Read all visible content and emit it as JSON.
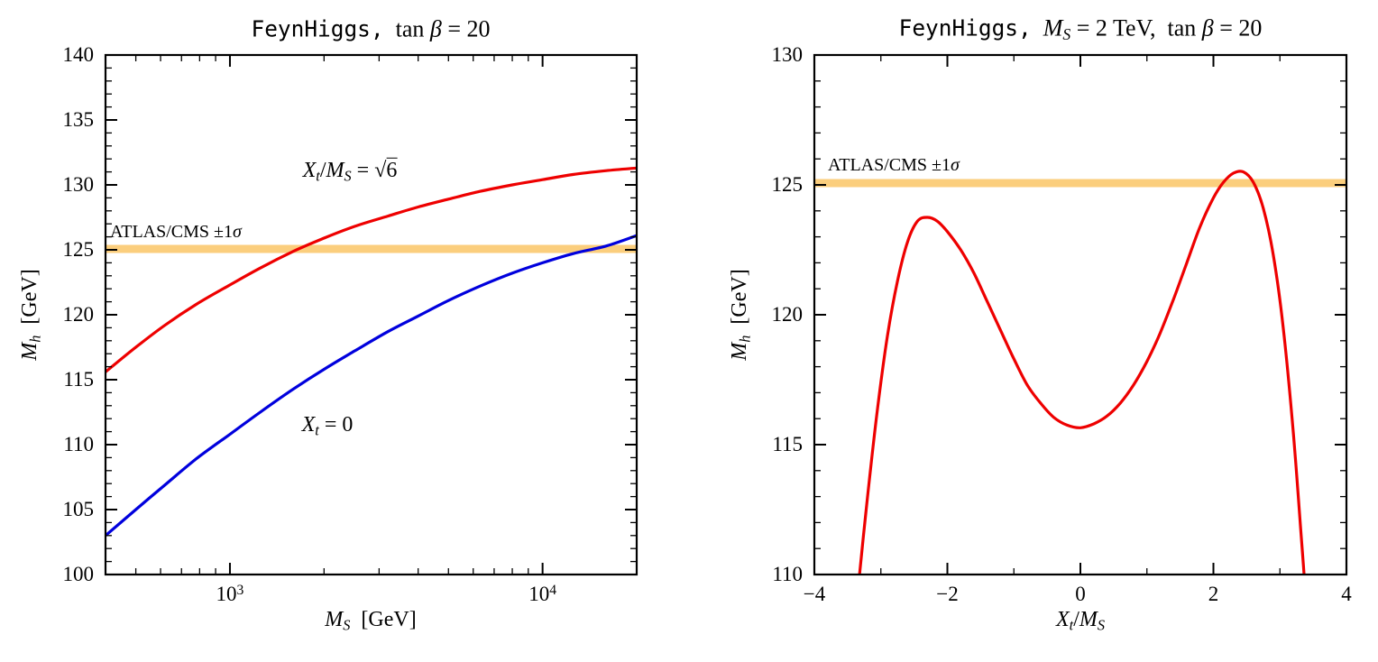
{
  "colors": {
    "axis": "#000000",
    "red_curve": "#ee0000",
    "blue_curve": "#0000dd",
    "band": "#fbce7d",
    "background": "#ffffff"
  },
  "chart_data": [
    {
      "type": "line",
      "panel": "left",
      "title": "FeynHiggs, tan β = 20",
      "title_parts": [
        {
          "t": "FeynHiggs,",
          "s": "mono"
        },
        {
          "t": "  tan ",
          "s": "rm"
        },
        {
          "t": "β",
          "s": "it"
        },
        {
          "t": " = 20",
          "s": "rm"
        }
      ],
      "xlabel": "M_S  [GeV]",
      "xlabel_parts": [
        {
          "t": "M",
          "s": "it"
        },
        {
          "t": "S",
          "s": "sub"
        },
        {
          "t": "  [GeV]",
          "s": "rm"
        }
      ],
      "ylabel": "M_h  [GeV]",
      "ylabel_parts": [
        {
          "t": "M",
          "s": "it"
        },
        {
          "t": "h",
          "s": "sub"
        },
        {
          "t": "  [GeV]",
          "s": "rm"
        }
      ],
      "xscale": "log",
      "xlim": [
        400,
        20000
      ],
      "ylim": [
        100,
        140
      ],
      "grid": false,
      "x_major_ticks": {
        "values": [
          1000,
          10000
        ],
        "labels": [
          "10^3",
          "10^4"
        ],
        "label_parts": [
          [
            {
              "t": "10",
              "s": "rm"
            },
            {
              "t": "3",
              "s": "sup"
            }
          ],
          [
            {
              "t": "10",
              "s": "rm"
            },
            {
              "t": "4",
              "s": "sup"
            }
          ]
        ]
      },
      "x_minor_ticks": [
        500,
        600,
        700,
        800,
        900,
        2000,
        3000,
        4000,
        5000,
        6000,
        7000,
        8000,
        9000,
        20000
      ],
      "y_major_ticks": {
        "values": [
          100,
          105,
          110,
          115,
          120,
          125,
          130,
          135,
          140
        ],
        "labels": [
          "100",
          "105",
          "110",
          "115",
          "120",
          "125",
          "130",
          "135",
          "140"
        ]
      },
      "y_minor_step": 1,
      "band": {
        "label": "ATLAS/CMS ±1σ",
        "label_parts": [
          {
            "t": "ATLAS/CMS ±1",
            "s": "rm"
          },
          {
            "t": "σ",
            "s": "it"
          }
        ],
        "y_center": 125.07,
        "y_half_width": 0.3,
        "color": "#fbce7d"
      },
      "series": [
        {
          "name": "X_t/M_S = √6",
          "label_parts": [
            {
              "t": "X",
              "s": "it"
            },
            {
              "t": "t",
              "s": "sub"
            },
            {
              "t": "/",
              "s": "rm"
            },
            {
              "t": "M",
              "s": "it"
            },
            {
              "t": "S",
              "s": "sub"
            },
            {
              "t": " = ",
              "s": "rm"
            },
            {
              "t": "√",
              "s": "rm"
            },
            {
              "t": "6",
              "s": "sqrtarg"
            }
          ],
          "color": "#ee0000",
          "x": [
            400,
            500,
            620,
            780,
            1000,
            1250,
            1600,
            2000,
            2500,
            3200,
            4000,
            5000,
            6300,
            8000,
            10000,
            12500,
            16000,
            20000
          ],
          "y": [
            115.6,
            117.5,
            119.2,
            120.8,
            122.3,
            123.6,
            124.9,
            125.9,
            126.8,
            127.6,
            128.3,
            128.9,
            129.5,
            130.0,
            130.4,
            130.8,
            131.1,
            131.3
          ]
        },
        {
          "name": "X_t = 0",
          "label_parts": [
            {
              "t": "X",
              "s": "it"
            },
            {
              "t": "t",
              "s": "sub"
            },
            {
              "t": " = 0",
              "s": "rm"
            }
          ],
          "color": "#0000dd",
          "x": [
            400,
            500,
            620,
            780,
            1000,
            1250,
            1600,
            2000,
            2500,
            3200,
            4000,
            5000,
            6300,
            8000,
            10000,
            12500,
            16000,
            20000
          ],
          "y": [
            103.0,
            105.0,
            106.9,
            108.9,
            110.8,
            112.5,
            114.3,
            115.8,
            117.2,
            118.7,
            119.9,
            121.1,
            122.2,
            123.2,
            124.0,
            124.7,
            125.3,
            126.1
          ]
        }
      ]
    },
    {
      "type": "line",
      "panel": "right",
      "title": "FeynHiggs, M_S = 2 TeV, tan β = 20",
      "title_parts": [
        {
          "t": "FeynHiggs,",
          "s": "mono"
        },
        {
          "t": "  ",
          "s": "rm"
        },
        {
          "t": "M",
          "s": "it"
        },
        {
          "t": "S",
          "s": "sub"
        },
        {
          "t": " = 2 TeV,  tan ",
          "s": "rm"
        },
        {
          "t": "β",
          "s": "it"
        },
        {
          "t": " = 20",
          "s": "rm"
        }
      ],
      "xlabel": "X_t/M_S",
      "xlabel_parts": [
        {
          "t": "X",
          "s": "it"
        },
        {
          "t": "t",
          "s": "sub"
        },
        {
          "t": "/",
          "s": "rm"
        },
        {
          "t": "M",
          "s": "it"
        },
        {
          "t": "S",
          "s": "sub"
        }
      ],
      "ylabel": "M_h  [GeV]",
      "ylabel_parts": [
        {
          "t": "M",
          "s": "it"
        },
        {
          "t": "h",
          "s": "sub"
        },
        {
          "t": "  [GeV]",
          "s": "rm"
        }
      ],
      "xscale": "linear",
      "xlim": [
        -4,
        4
      ],
      "ylim": [
        110,
        130
      ],
      "grid": false,
      "x_major_ticks": {
        "values": [
          -4,
          -2,
          0,
          2,
          4
        ],
        "labels": [
          "−4",
          "−2",
          "0",
          "2",
          "4"
        ]
      },
      "x_minor_ticks": [
        -3,
        -1,
        1,
        3
      ],
      "y_major_ticks": {
        "values": [
          110,
          115,
          120,
          125,
          130
        ],
        "labels": [
          "110",
          "115",
          "120",
          "125",
          "130"
        ]
      },
      "y_minor_step": 1,
      "band": {
        "label": "ATLAS/CMS ±1σ",
        "label_parts": [
          {
            "t": "ATLAS/CMS ±1",
            "s": "rm"
          },
          {
            "t": "σ",
            "s": "it"
          }
        ],
        "y_center": 125.07,
        "y_half_width": 0.15,
        "color": "#fbce7d"
      },
      "series": [
        {
          "name": "M_h vs X_t/M_S",
          "color": "#ee0000",
          "x": [
            -3.45,
            -3.32,
            -3.2,
            -3.05,
            -2.9,
            -2.75,
            -2.6,
            -2.45,
            -2.3,
            -2.15,
            -2.0,
            -1.8,
            -1.6,
            -1.4,
            -1.2,
            -1.0,
            -0.8,
            -0.6,
            -0.4,
            -0.2,
            0.0,
            0.2,
            0.4,
            0.6,
            0.8,
            1.0,
            1.2,
            1.4,
            1.6,
            1.8,
            2.0,
            2.15,
            2.3,
            2.45,
            2.6,
            2.75,
            2.9,
            3.05,
            3.2,
            3.32,
            3.42
          ],
          "y": [
            106.5,
            110.0,
            113.0,
            116.4,
            119.2,
            121.3,
            122.8,
            123.6,
            123.75,
            123.6,
            123.2,
            122.5,
            121.6,
            120.5,
            119.4,
            118.3,
            117.3,
            116.6,
            116.05,
            115.75,
            115.65,
            115.8,
            116.1,
            116.6,
            117.3,
            118.2,
            119.3,
            120.6,
            122.0,
            123.4,
            124.5,
            125.1,
            125.45,
            125.5,
            125.1,
            124.1,
            122.3,
            119.5,
            115.5,
            111.5,
            108.0
          ]
        }
      ]
    }
  ]
}
